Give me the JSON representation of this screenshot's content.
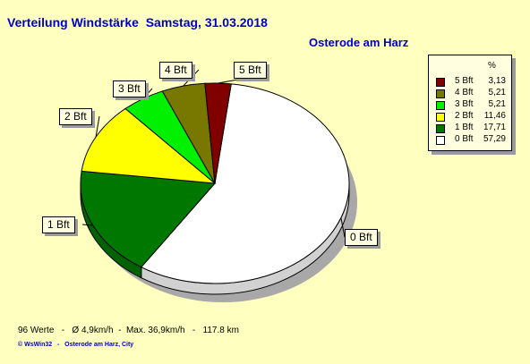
{
  "header": {
    "title": "Verteilung Windstärke  Samstag, 31.03.2018",
    "location": "Osterode am Harz"
  },
  "chart_data": {
    "type": "pie",
    "title": "Verteilung Windstärke  Samstag, 31.03.2018",
    "legend_position": "top-right",
    "legend_header": "%",
    "slices": [
      {
        "label": "0 Bft",
        "value": 57.29,
        "value_text": "57,29",
        "color": "#ffffff"
      },
      {
        "label": "1 Bft",
        "value": 17.71,
        "value_text": "17,71",
        "color": "#007800"
      },
      {
        "label": "2 Bft",
        "value": 11.46,
        "value_text": "11,46",
        "color": "#ffff00"
      },
      {
        "label": "3 Bft",
        "value": 5.21,
        "value_text": "5,21",
        "color": "#00f000"
      },
      {
        "label": "4 Bft",
        "value": 5.21,
        "value_text": "5,21",
        "color": "#787800"
      },
      {
        "label": "5 Bft",
        "value": 3.13,
        "value_text": "3,13",
        "color": "#800000"
      }
    ]
  },
  "footer": {
    "stats": "96 Werte   -   Ø 4,9km/h  -  Max. 36,9km/h   -   117.8 km",
    "credit": "© WsWin32   -   Osterode am Harz, City"
  }
}
